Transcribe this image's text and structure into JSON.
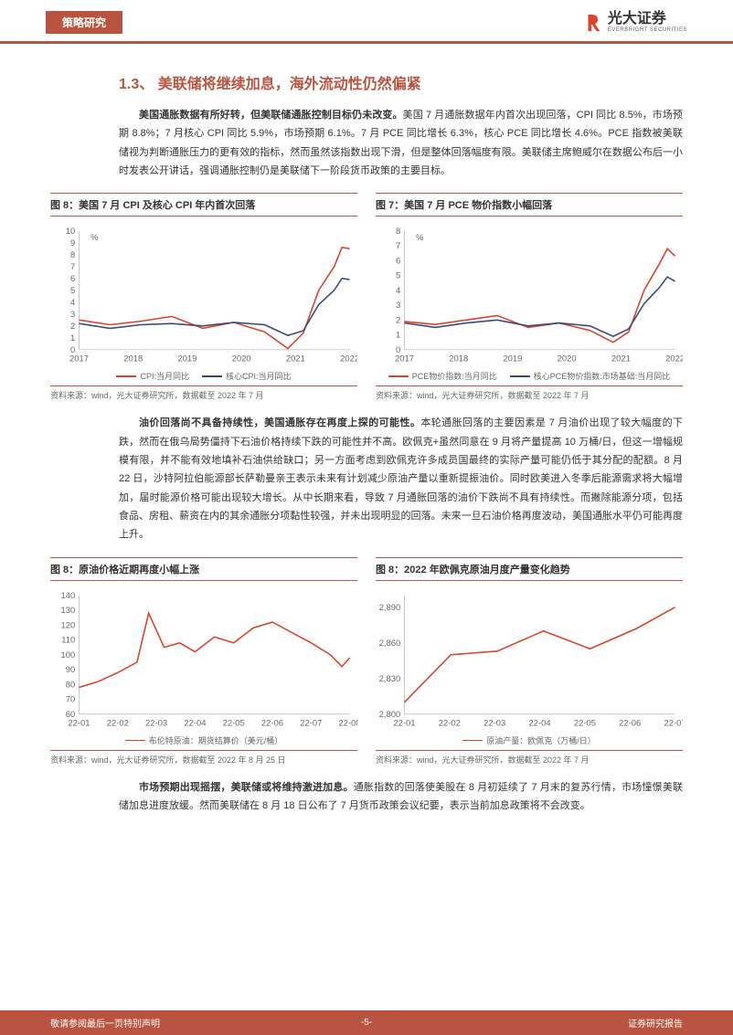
{
  "header": {
    "category": "策略研究",
    "brand_cn": "光大证券",
    "brand_en": "EVERBRIGHT SECURITIES"
  },
  "colors": {
    "accent": "#b8543f",
    "series_red": "#d9442a",
    "series_blue": "#3a4a7a",
    "text": "#333333",
    "axis": "#999999",
    "bg": "#ffffff"
  },
  "section": {
    "number": "1.3、",
    "title": "美联储将继续加息，海外流动性仍然偏紧"
  },
  "para1": {
    "lead": "美国通胀数据有所好转，但美联储通胀控制目标仍未改变。",
    "body": "美国 7 月通胀数据年内首次出现回落，CPI 同比 8.5%，市场预期 8.8%；7 月核心 CPI 同比 5.9%，市场预期 6.1%。7 月 PCE 同比增长 6.3%，核心 PCE 同比增长 4.6%。PCE 指数被美联储视为判断通胀压力的更有效的指标，然而虽然该指数出现下滑，但是整体回落幅度有限。美联储主席鲍威尔在数据公布后一小时发表公开讲话，强调通胀控制仍是美联储下一阶段货币政策的主要目标。"
  },
  "para2": {
    "lead": "油价回落尚不具备持续性，美国通胀存在再度上探的可能性。",
    "body": "本轮通胀回落的主要因素是 7 月油价出现了较大幅度的下跌，然而在俄乌局势僵持下石油价格持续下跌的可能性并不高。欧佩克+虽然同意在 9 月将产量提高 10 万桶/日，但这一增幅规模有限，并不能有效地填补石油供给缺口；另一方面考虑到欧佩克许多成员国最终的实际产量可能仍低于其分配的配额。8 月 22 日，沙特阿拉伯能源部长萨勒曼亲王表示未来有计划减少原油产量以重新提振油价。同时欧美进入冬季后能源需求将大幅增加，届时能源价格可能出现较大增长。从中长期来看，导致 7 月通胀回落的油价下跌尚不具有持续性。而撇除能源分项，包括食品、房租、薪资在内的其余通胀分项黏性较强，并未出现明显的回落。未来一旦石油价格再度波动，美国通胀水平仍可能再度上升。"
  },
  "para3": {
    "lead": "市场预期出现摇摆，美联储或将维持激进加息。",
    "body": "通胀指数的回落使美股在 8 月初延续了 7 月末的复苏行情，市场憧憬美联储加息进度放缓。然而美联储在 8 月 18 日公布了 7 月货币政策会议纪要，表示当前加息政策将不会改变。"
  },
  "chart1": {
    "title": "图 8：美国 7 月 CPI 及核心 CPI 年内首次回落",
    "type": "line",
    "y_unit": "%",
    "ylim": [
      0,
      10
    ],
    "yticks": [
      0,
      1,
      2,
      3,
      4,
      5,
      6,
      7,
      8,
      9,
      10
    ],
    "xticks": [
      "2017",
      "2018",
      "2019",
      "2020",
      "2021",
      "2022"
    ],
    "series": [
      {
        "name": "CPI:当月同比",
        "color": "#d9442a",
        "x": [
          0,
          8,
          16,
          24,
          32,
          40,
          48,
          54,
          58,
          62,
          66,
          68,
          70
        ],
        "y": [
          2.5,
          2.1,
          2.4,
          2.8,
          1.8,
          2.3,
          1.5,
          0.1,
          1.4,
          5.0,
          7.0,
          8.6,
          8.5
        ]
      },
      {
        "name": "核心CPI:当月同比",
        "color": "#3a4a7a",
        "x": [
          0,
          8,
          16,
          24,
          32,
          40,
          48,
          54,
          58,
          62,
          66,
          68,
          70
        ],
        "y": [
          2.2,
          1.8,
          2.1,
          2.2,
          2.0,
          2.3,
          2.1,
          1.2,
          1.6,
          3.8,
          5.0,
          6.0,
          5.9
        ]
      }
    ],
    "legend": [
      "CPI:当月同比",
      "核心CPI:当月同比"
    ],
    "source": "资料来源：wind，光大证券研究所，数据截至 2022 年 7 月"
  },
  "chart2": {
    "title": "图 7：美国 7 月 PCE 物价指数小幅回落",
    "type": "line",
    "y_unit": "%",
    "ylim": [
      0,
      8
    ],
    "yticks": [
      0,
      1,
      2,
      3,
      4,
      5,
      6,
      7,
      8
    ],
    "xticks": [
      "2017",
      "2018",
      "2019",
      "2020",
      "2021",
      "2022"
    ],
    "series": [
      {
        "name": "PCE物价指数:当月同比",
        "color": "#d9442a",
        "x": [
          0,
          8,
          16,
          24,
          32,
          40,
          48,
          54,
          58,
          62,
          66,
          68,
          70
        ],
        "y": [
          1.9,
          1.7,
          2.0,
          2.3,
          1.5,
          1.8,
          1.3,
          0.5,
          1.2,
          4.0,
          5.8,
          6.8,
          6.3
        ]
      },
      {
        "name": "核心PCE物价指数:市场基础:当月同比",
        "color": "#3a4a7a",
        "x": [
          0,
          8,
          16,
          24,
          32,
          40,
          48,
          54,
          58,
          62,
          66,
          68,
          70
        ],
        "y": [
          1.8,
          1.5,
          1.8,
          2.0,
          1.6,
          1.8,
          1.6,
          0.9,
          1.4,
          3.1,
          4.2,
          4.9,
          4.6
        ]
      }
    ],
    "legend": [
      "PCE物价指数:当月同比",
      "核心PCE物价指数:市场基础:当月同比"
    ],
    "source": "资料来源：wind，光大证券研究所，数据截至 2022 年 7 月"
  },
  "chart3": {
    "title": "图 8：原油价格近期再度小幅上涨",
    "type": "line",
    "ylim": [
      60,
      140
    ],
    "yticks": [
      60,
      70,
      80,
      90,
      100,
      110,
      120,
      130,
      140
    ],
    "xticks": [
      "22-01",
      "22-02",
      "22-03",
      "22-04",
      "22-05",
      "22-06",
      "22-07",
      "22-08"
    ],
    "series": [
      {
        "name": "布伦特原油：期货结算价（美元/桶）",
        "color": "#d9442a",
        "x": [
          0,
          5,
          10,
          15,
          18,
          22,
          26,
          30,
          35,
          40,
          45,
          50,
          55,
          60,
          65,
          68,
          70
        ],
        "y": [
          78,
          82,
          88,
          95,
          128,
          105,
          108,
          102,
          112,
          108,
          118,
          122,
          115,
          108,
          100,
          92,
          98
        ]
      }
    ],
    "legend": [
      "布伦特原油：期货结算价（美元/桶）"
    ],
    "source": "资料来源：wind，光大证券研究所，数据截至 2022 年 8 月 25 日"
  },
  "chart4": {
    "title": "图 8：2022 年欧佩克原油月度产量变化趋势",
    "type": "line",
    "ylim": [
      2800,
      2900
    ],
    "yticks": [
      2800,
      2830,
      2860,
      2890
    ],
    "ytick_labels": [
      "2,800",
      "2,830",
      "2,860",
      "2,890"
    ],
    "xticks": [
      "22-01",
      "22-02",
      "22-03",
      "22-04",
      "22-05",
      "22-06",
      "22-07"
    ],
    "series": [
      {
        "name": "原油产量：欧佩克（万桶/日）",
        "color": "#d9442a",
        "x": [
          0,
          12,
          24,
          36,
          48,
          60,
          70
        ],
        "y": [
          2810,
          2850,
          2853,
          2870,
          2855,
          2872,
          2890
        ]
      }
    ],
    "legend": [
      "原油产量：欧佩克（万桶/日）"
    ],
    "source": "资料来源：wind，光大证券研究所，数据截至 2022 年 7 月"
  },
  "footer": {
    "left": "敬请参阅最后一页特别声明",
    "center": "-5-",
    "right": "证券研究报告"
  }
}
